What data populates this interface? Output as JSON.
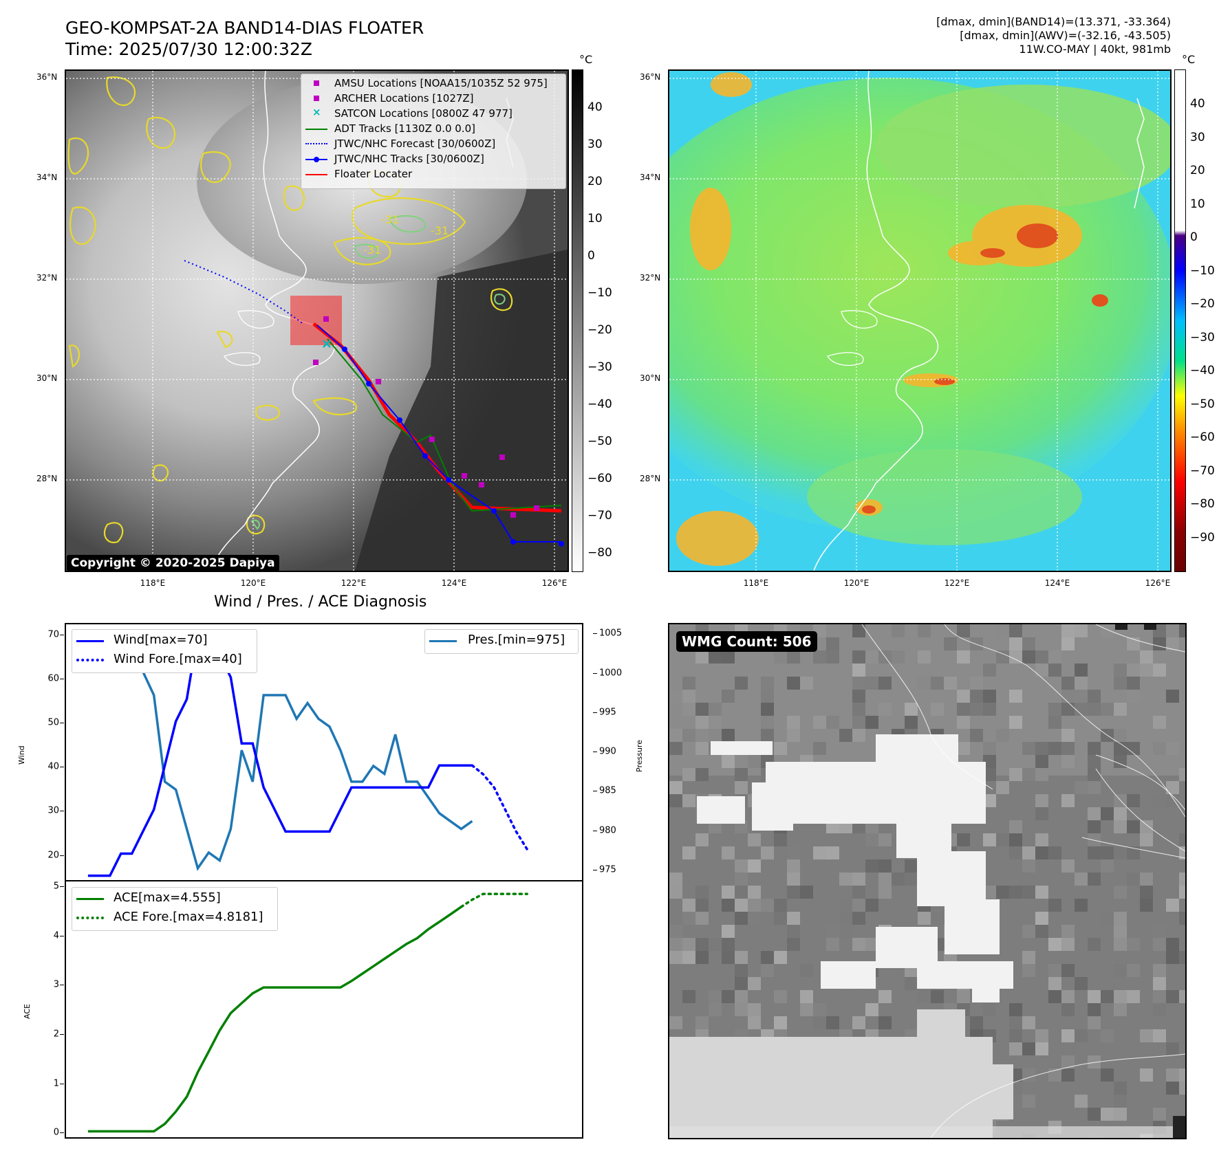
{
  "header": {
    "title_line1": "GEO-KOMPSAT-2A BAND14-DIAS FLOATER",
    "title_line2": "Time: 2025/07/30 12:00:32Z",
    "info_line1": "[dmax, dmin](BAND14)=(13.371, -33.364)",
    "info_line2": "[dmax, dmin](AWV)=(-32.16, -43.505)",
    "info_line3": "11W.CO-MAY | 40kt, 981mb"
  },
  "map": {
    "lat_labels": [
      "36°N",
      "34°N",
      "32°N",
      "30°N",
      "28°N"
    ],
    "lon_labels": [
      "118°E",
      "120°E",
      "122°E",
      "124°E",
      "126°E"
    ],
    "copyright": "Copyright © 2020-2025 Dapiya",
    "contour_label": "-31",
    "legend": [
      {
        "label": "AMSU Locations [NOAA15/1035Z 52 975]",
        "color": "#c000c0",
        "marker": "square"
      },
      {
        "label": "ARCHER Locations [1027Z]",
        "color": "#c000c0",
        "marker": "square"
      },
      {
        "label": "SATCON Locations [0800Z 47 977]",
        "color": "#00b8b8",
        "marker": "x"
      },
      {
        "label": "ADT Tracks [1130Z 0.0 0.0]",
        "color": "#008000",
        "marker": "line"
      },
      {
        "label": "JTWC/NHC Forecast [30/0600Z]",
        "color": "#0000ff",
        "marker": "dotted"
      },
      {
        "label": "JTWC/NHC Tracks [30/0600Z]",
        "color": "#0000ff",
        "marker": "line-dot"
      },
      {
        "label": "Floater Locater",
        "color": "#ff0000",
        "marker": "line"
      }
    ]
  },
  "colorbar_ir": {
    "unit": "°C",
    "ticks": [
      "40",
      "30",
      "20",
      "10",
      "0",
      "−10",
      "−20",
      "−30",
      "−40",
      "−50",
      "−60",
      "−70",
      "−80"
    ]
  },
  "colorbar_wv": {
    "unit": "°C",
    "ticks": [
      "40",
      "30",
      "20",
      "10",
      "0",
      "−10",
      "−20",
      "−30",
      "−40",
      "−50",
      "−60",
      "−70",
      "−80",
      "−90"
    ]
  },
  "diagnosis_title": "Wind / Pres. / ACE Diagnosis",
  "wmg_label": "WMG Count: 506",
  "chart_data": [
    {
      "type": "line",
      "title": "Wind / Pres. / ACE Diagnosis",
      "ylabel": "Wind",
      "y2label": "Pressure",
      "ylim": [
        14,
        72
      ],
      "y2lim": [
        973.5,
        1006
      ],
      "yticks": [
        20,
        30,
        40,
        50,
        60,
        70
      ],
      "y2ticks": [
        975,
        980,
        985,
        990,
        995,
        1000,
        1005
      ],
      "x": [
        0,
        1,
        2,
        3,
        4,
        5,
        6,
        7,
        8,
        9,
        10,
        11,
        12,
        13,
        14,
        15,
        16,
        17,
        18,
        19,
        20,
        21,
        22,
        23,
        24,
        25,
        26,
        27,
        28,
        29,
        30,
        31,
        32,
        33,
        34,
        35,
        36,
        37,
        38,
        39,
        40,
        41,
        42,
        43
      ],
      "series": [
        {
          "name": "Wind[max=70]",
          "color": "#0000ff",
          "style": "solid",
          "axis": "left",
          "values": [
            15,
            15,
            15,
            20,
            20,
            25,
            30,
            40,
            50,
            55,
            70,
            65,
            65,
            60,
            45,
            45,
            35,
            30,
            25,
            25,
            25,
            25,
            25,
            30,
            35,
            35,
            35,
            35,
            35,
            35,
            35,
            35,
            40,
            40,
            40,
            40,
            null,
            null,
            null,
            null,
            null,
            null,
            null,
            null
          ]
        },
        {
          "name": "Wind Fore.[max=40]",
          "color": "#0000ff",
          "style": "dotted",
          "axis": "left",
          "values": [
            null,
            null,
            null,
            null,
            null,
            null,
            null,
            null,
            null,
            null,
            null,
            null,
            null,
            null,
            null,
            null,
            null,
            null,
            null,
            null,
            null,
            null,
            null,
            null,
            null,
            null,
            null,
            null,
            null,
            null,
            null,
            null,
            null,
            null,
            null,
            40,
            38,
            35,
            30,
            25,
            21,
            null,
            null,
            null
          ]
        },
        {
          "name": "Pres.[min=975]",
          "color": "#1f77b4",
          "style": "solid",
          "axis": "right",
          "values": [
            1005,
            1005,
            1005,
            1005,
            1002,
            1000,
            997,
            986,
            985,
            980,
            975,
            977,
            976,
            980,
            990,
            986,
            997,
            997,
            997,
            994,
            996,
            994,
            993,
            990,
            986,
            986,
            988,
            987,
            992,
            986,
            986,
            984,
            982,
            981,
            980,
            981,
            null,
            null,
            null,
            null,
            null,
            null,
            null,
            null
          ]
        }
      ]
    },
    {
      "type": "line",
      "ylabel": "ACE",
      "ylim": [
        -0.12,
        5.07
      ],
      "yticks": [
        0,
        1,
        2,
        3,
        4,
        5
      ],
      "x": [
        0,
        1,
        2,
        3,
        4,
        5,
        6,
        7,
        8,
        9,
        10,
        11,
        12,
        13,
        14,
        15,
        16,
        17,
        18,
        19,
        20,
        21,
        22,
        23,
        24,
        25,
        26,
        27,
        28,
        29,
        30,
        31,
        32,
        33,
        34,
        35,
        36,
        37,
        38,
        39,
        40,
        41,
        42,
        43
      ],
      "series": [
        {
          "name": "ACE[max=4.555]",
          "color": "#008000",
          "style": "solid",
          "values": [
            0,
            0,
            0,
            0,
            0,
            0,
            0,
            0.15,
            0.4,
            0.7,
            1.2,
            1.62,
            2.05,
            2.4,
            2.6,
            2.8,
            2.92,
            2.92,
            2.92,
            2.92,
            2.92,
            2.92,
            2.92,
            2.92,
            3.05,
            3.2,
            3.35,
            3.5,
            3.65,
            3.8,
            3.92,
            4.1,
            4.25,
            4.4,
            4.555,
            null,
            null,
            null,
            null,
            null,
            null,
            null,
            null,
            null
          ]
        },
        {
          "name": "ACE Fore.[max=4.8181]",
          "color": "#008000",
          "style": "dotted",
          "values": [
            null,
            null,
            null,
            null,
            null,
            null,
            null,
            null,
            null,
            null,
            null,
            null,
            null,
            null,
            null,
            null,
            null,
            null,
            null,
            null,
            null,
            null,
            null,
            null,
            null,
            null,
            null,
            null,
            null,
            null,
            null,
            null,
            null,
            null,
            4.555,
            4.7,
            4.8181,
            4.8181,
            4.8181,
            4.8181,
            4.8181,
            null,
            null,
            null
          ]
        }
      ]
    }
  ]
}
